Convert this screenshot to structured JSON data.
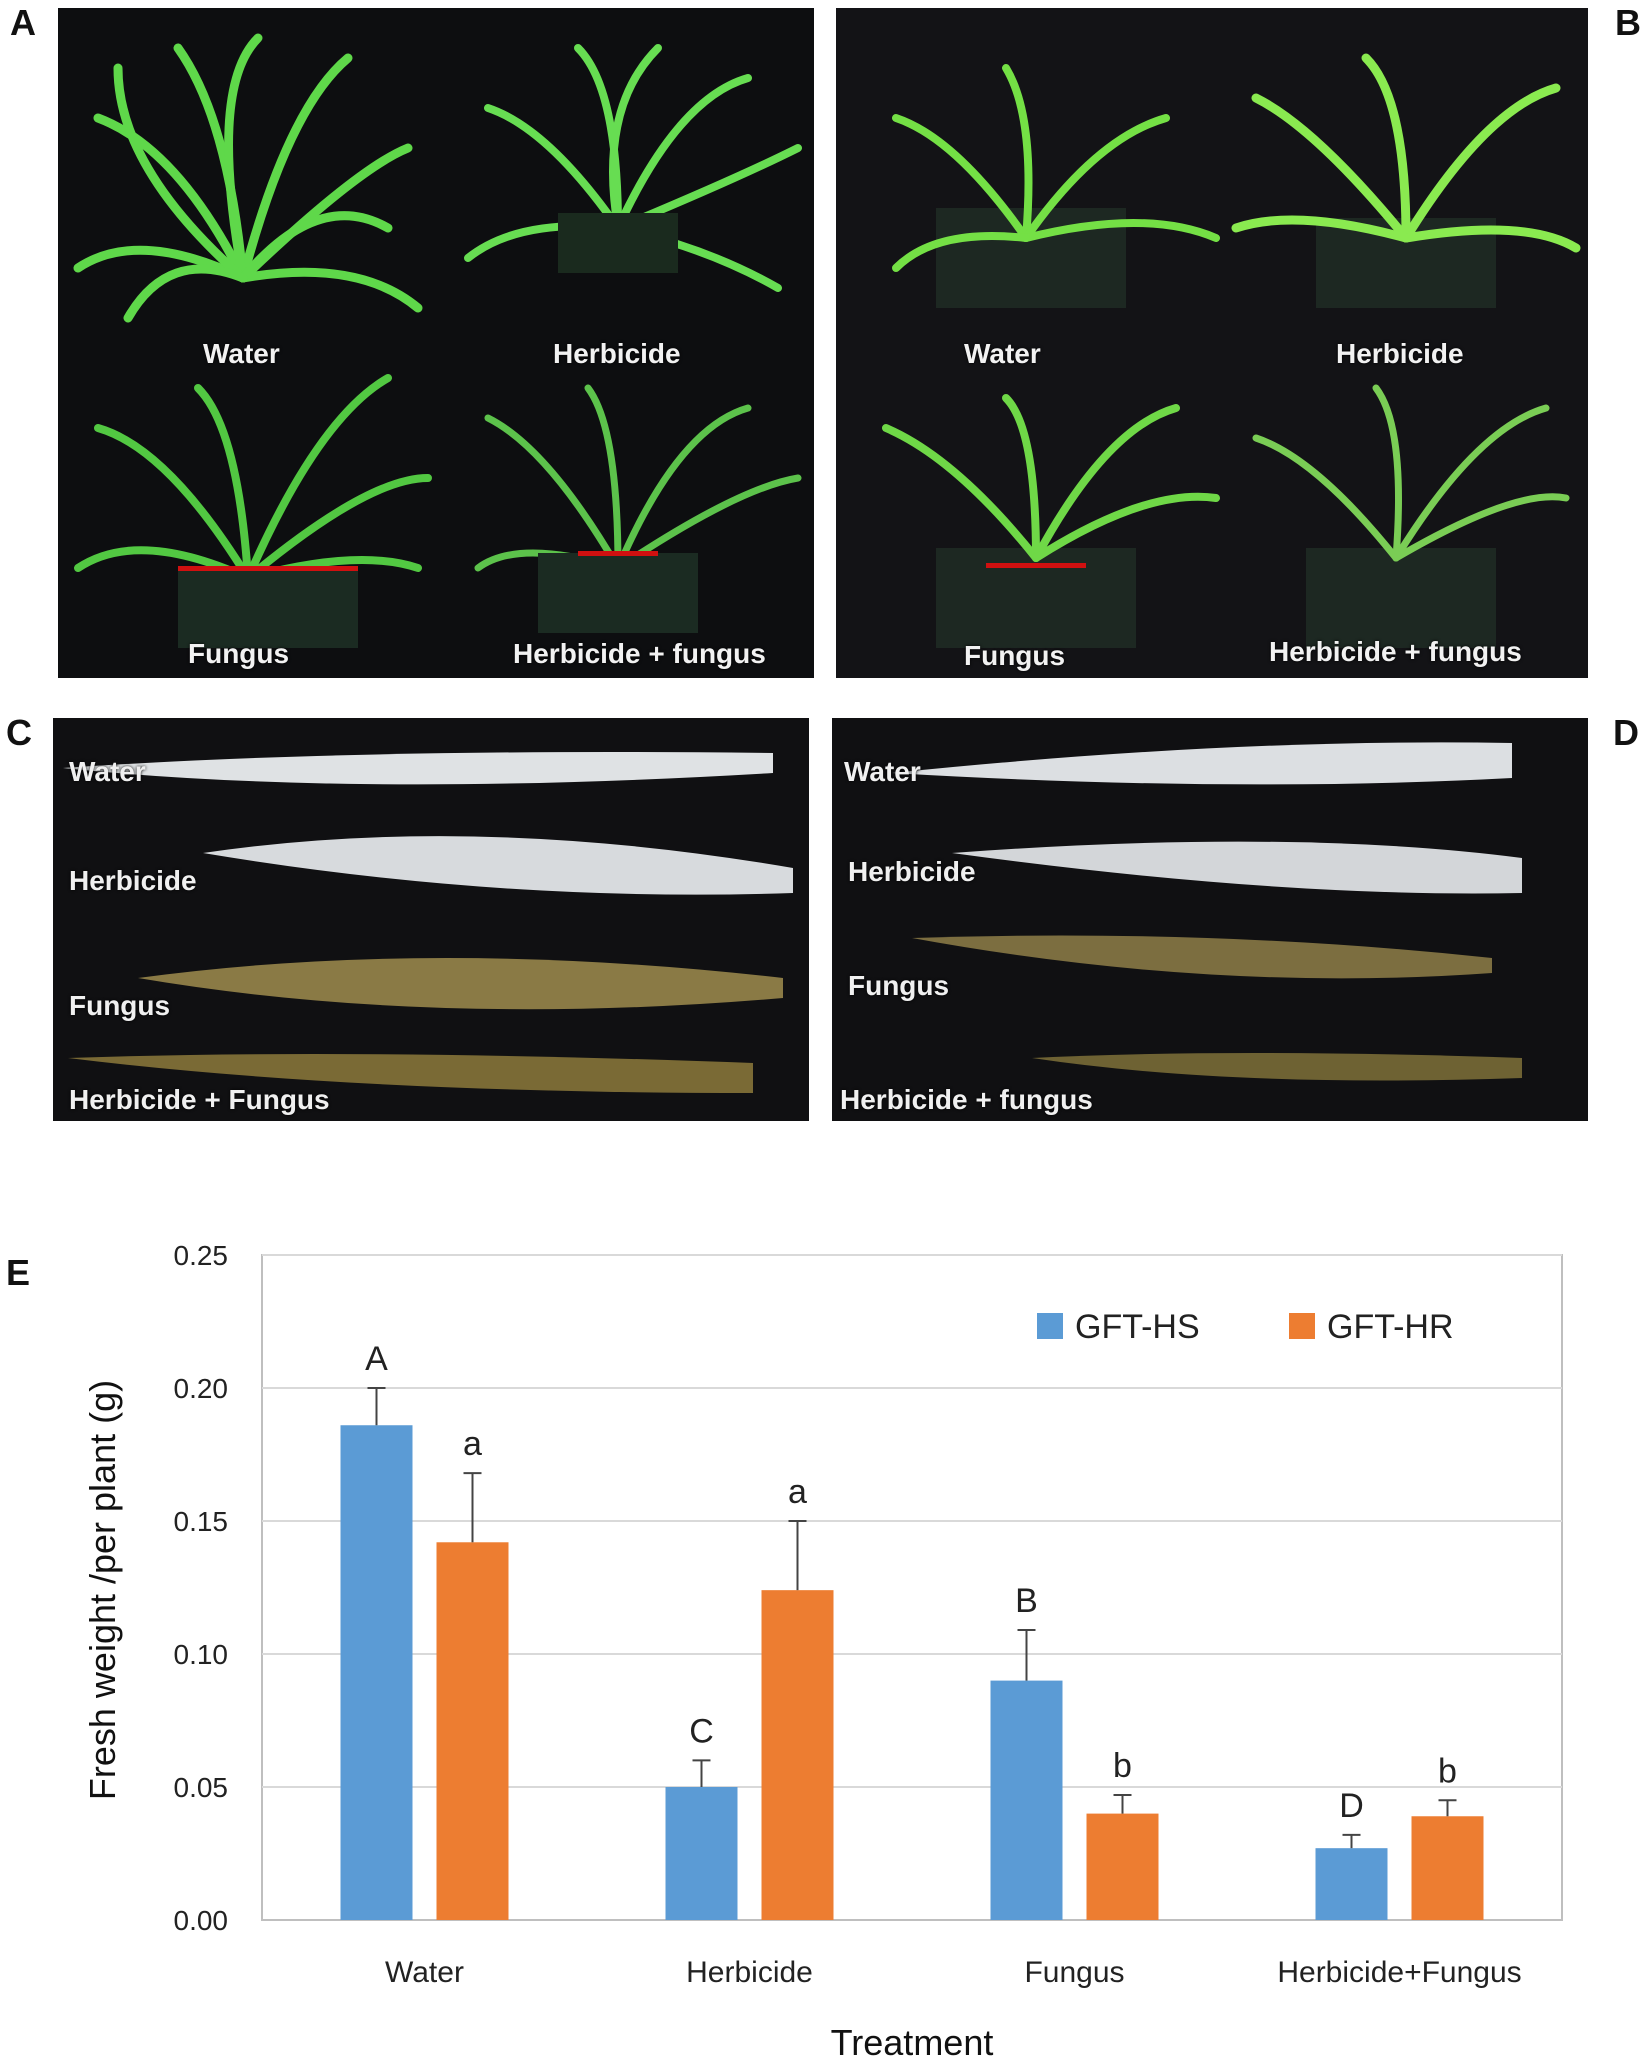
{
  "panels": {
    "A": {
      "letter": "A",
      "labels": [
        "Water",
        "Herbicide",
        "Fungus",
        "Herbicide + fungus"
      ]
    },
    "B": {
      "letter": "B",
      "labels": [
        "Water",
        "Herbicide",
        "Fungus",
        "Herbicide + fungus"
      ]
    },
    "C": {
      "letter": "C",
      "labels": [
        "Water",
        "Herbicide",
        "Fungus",
        "Herbicide + Fungus"
      ]
    },
    "D": {
      "letter": "D",
      "labels": [
        "Water",
        "Herbicide",
        "Fungus",
        "Herbicide + fungus"
      ]
    },
    "E": {
      "letter": "E"
    }
  },
  "colors": {
    "series_hs": "#5b9bd5",
    "series_hr": "#ed7d31",
    "photo_bg": "#111214",
    "leaf_green": "#5fd84a"
  },
  "chart_data": {
    "type": "bar",
    "xlabel": "Treatment",
    "ylabel": "Fresh weight /per plant (g)",
    "ylim": [
      0,
      0.25
    ],
    "yticks": [
      "0.00",
      "0.05",
      "0.10",
      "0.15",
      "0.20",
      "0.25"
    ],
    "grid": true,
    "legend_position": "top-right",
    "categories": [
      "Water",
      "Herbicide",
      "Fungus",
      "Herbicide+Fungus"
    ],
    "series": [
      {
        "name": "GFT-HS",
        "values": [
          0.186,
          0.05,
          0.09,
          0.027
        ],
        "errors": [
          0.014,
          0.01,
          0.019,
          0.005
        ],
        "letters": [
          "A",
          "C",
          "B",
          "D"
        ]
      },
      {
        "name": "GFT-HR",
        "values": [
          0.142,
          0.124,
          0.04,
          0.039
        ],
        "errors": [
          0.026,
          0.026,
          0.007,
          0.006
        ],
        "letters": [
          "a",
          "a",
          "b",
          "b"
        ]
      }
    ]
  }
}
